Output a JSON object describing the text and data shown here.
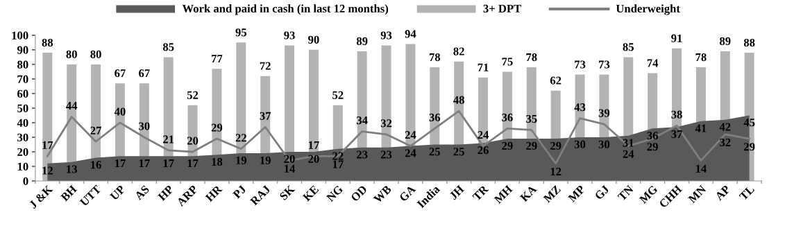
{
  "chart_data": {
    "type": "bar",
    "categories": [
      "J &K",
      "BH",
      "UTT",
      "UP",
      "AS",
      "HP",
      "ARP",
      "HR",
      "PJ",
      "RAJ",
      "SK",
      "KE",
      "NG",
      "OD",
      "WB",
      "GA",
      "India",
      "JH",
      "TR",
      "MH",
      "KA",
      "MZ",
      "MP",
      "GJ",
      "TN",
      "MG",
      "CHH",
      "MN",
      "AP",
      "TL"
    ],
    "series": [
      {
        "name": "Work and paid in cash (in last 12 months)",
        "type": "area",
        "color": "#595959",
        "values": [
          12,
          13,
          16,
          17,
          17,
          17,
          17,
          18,
          19,
          19,
          20,
          20,
          22,
          23,
          23,
          24,
          25,
          25,
          26,
          29,
          29,
          29,
          30,
          30,
          31,
          36,
          37,
          41,
          42,
          45
        ]
      },
      {
        "name": "3+ DPT",
        "color": "#b3b3b3",
        "values": [
          88,
          80,
          80,
          67,
          67,
          85,
          52,
          77,
          95,
          72,
          93,
          90,
          52,
          89,
          93,
          94,
          78,
          82,
          71,
          75,
          78,
          62,
          73,
          73,
          85,
          74,
          91,
          78,
          89,
          88
        ]
      },
      {
        "name": "Underweight",
        "type": "line",
        "color": "#7f7f7f",
        "values": [
          17,
          44,
          27,
          40,
          30,
          21,
          20,
          29,
          22,
          37,
          14,
          17,
          17,
          34,
          32,
          24,
          36,
          48,
          24,
          36,
          35,
          12,
          43,
          39,
          24,
          29,
          38,
          14,
          32,
          29
        ]
      }
    ],
    "ylim": [
      0,
      100
    ],
    "yticks": [
      0,
      10,
      20,
      30,
      40,
      50,
      60,
      70,
      80,
      90,
      100
    ],
    "grid": false,
    "legend": "top",
    "data_labels": true,
    "marker": "none",
    "line_style": "solid"
  }
}
